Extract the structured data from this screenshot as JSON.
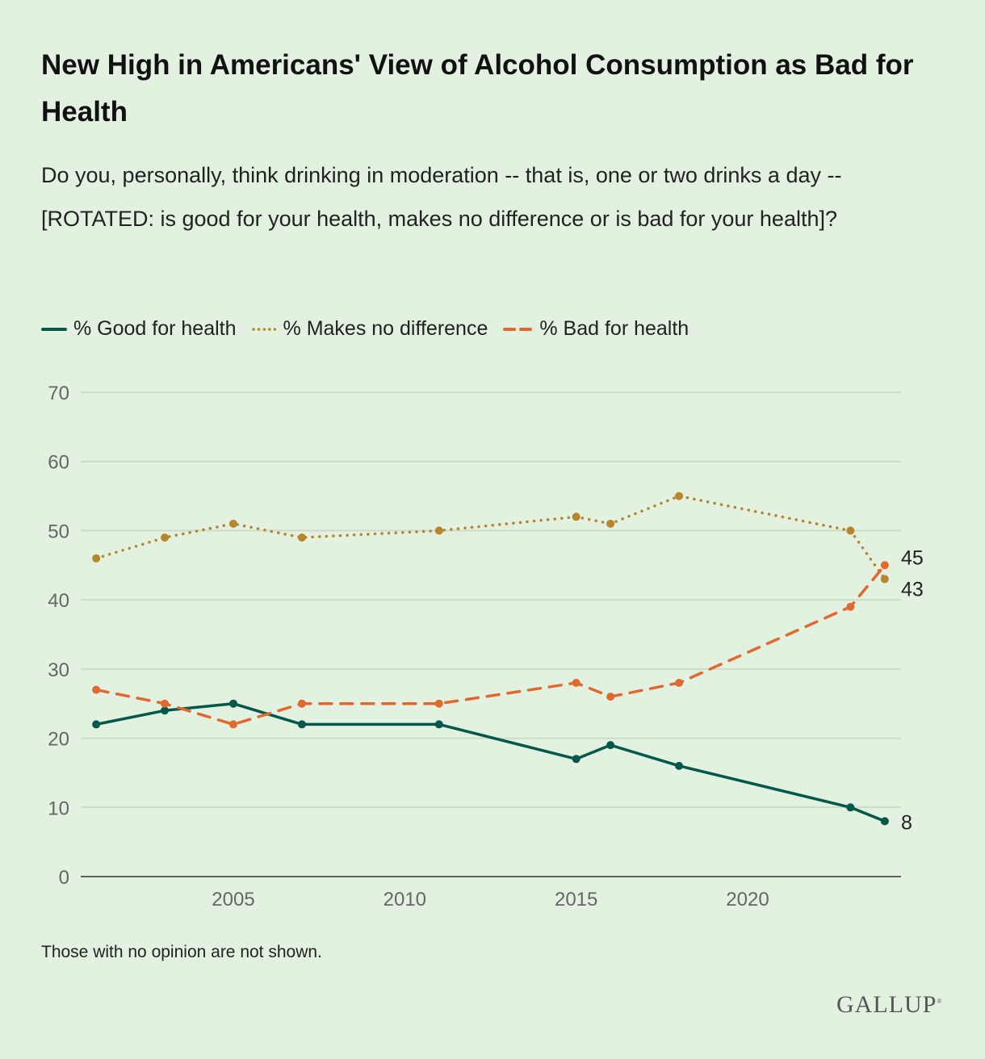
{
  "title": "New High in Americans' View of Alcohol Consumption as Bad for Health",
  "subtitle": "Do you, personally, think drinking in moderation -- that is, one or two drinks a day -- [ROTATED: is good for your health, makes no difference or is bad for your health]?",
  "note": "Those with no opinion are not shown.",
  "logo": "GALLUP",
  "colors": {
    "good": "#00584a",
    "nodiff": "#b5862a",
    "bad": "#e0692f",
    "grid": "#cddbc9",
    "axis": "#333333",
    "tick": "#666666"
  },
  "chart_data": {
    "type": "line",
    "title": "New High in Americans' View of Alcohol Consumption as Bad for Health",
    "xlabel": "",
    "ylabel": "",
    "ylim": [
      0,
      70
    ],
    "yticks": [
      0,
      10,
      20,
      30,
      40,
      50,
      60,
      70
    ],
    "xlim": [
      2000.3,
      2025
    ],
    "xticks": [
      2005,
      2010,
      2015,
      2020
    ],
    "grid": true,
    "legend_position": "top-left",
    "x": [
      2001,
      2003,
      2005,
      2007,
      2011,
      2015,
      2016,
      2018,
      2023,
      2024
    ],
    "series": [
      {
        "name": "% Good for health",
        "key": "good",
        "style": "solid",
        "values": [
          22,
          24,
          25,
          22,
          22,
          17,
          19,
          16,
          10,
          8
        ],
        "end_label": "8"
      },
      {
        "name": "% Makes no difference",
        "key": "nodiff",
        "style": "dotted",
        "values": [
          46,
          49,
          51,
          49,
          50,
          52,
          51,
          55,
          50,
          43
        ],
        "end_label": "43"
      },
      {
        "name": "% Bad for health",
        "key": "bad",
        "style": "dashed",
        "values": [
          27,
          25,
          22,
          25,
          25,
          28,
          26,
          28,
          39,
          45
        ],
        "end_label": "45"
      }
    ]
  }
}
